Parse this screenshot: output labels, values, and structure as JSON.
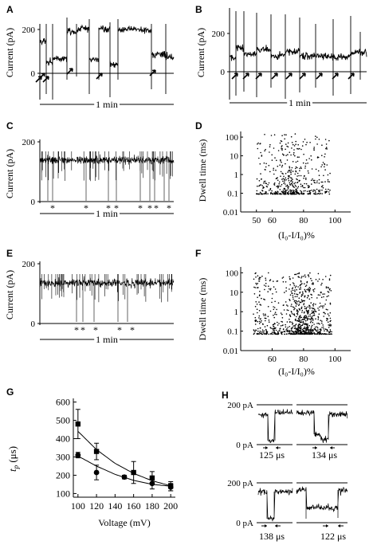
{
  "panels": {
    "A": {
      "label": "A",
      "ylabel": "Current (pA)",
      "yticks": [
        "200",
        "0"
      ],
      "scalebar": "1 min",
      "arrow_count": 6
    },
    "B": {
      "label": "B",
      "ylabel": "Current (pA)",
      "yticks": [
        "200",
        "0"
      ],
      "scalebar": "1 min",
      "arrow_count": 9
    },
    "C": {
      "label": "C",
      "ylabel": "Current (pA)",
      "yticks": [
        "200",
        "0"
      ],
      "scalebar": "1 min",
      "star_marks": [
        "*",
        "*",
        "*",
        "*",
        "*",
        "*",
        "*",
        "*"
      ]
    },
    "E": {
      "label": "E",
      "ylabel": "Current (pA)",
      "yticks": [
        "200",
        "0"
      ],
      "scalebar": "1 min",
      "star_marks": [
        "*",
        "*",
        "*",
        "*",
        "*"
      ]
    },
    "H": {
      "label": "H",
      "level_200": "200 pA",
      "level_0": "0 pA",
      "durations": [
        "125 μs",
        "134 μs",
        "138 μs",
        "122 μs"
      ]
    }
  },
  "chart_data": [
    {
      "panel": "D",
      "type": "scatter",
      "title": "",
      "xlabel": "(I₀-I/I₀)%",
      "ylabel": "Dwell time (ms)",
      "xlim": [
        40,
        110
      ],
      "ylim": [
        0.01,
        200
      ],
      "yscale": "log",
      "xticks": [
        "50",
        "60",
        "80",
        "100"
      ],
      "yticks": [
        "100",
        "10",
        "1",
        "0.1",
        "0.01"
      ],
      "points_note_x_range": [
        50,
        97
      ],
      "points_note_y_range": [
        0.09,
        150
      ]
    },
    {
      "panel": "F",
      "type": "scatter",
      "title": "",
      "xlabel": "(I₀-I/I₀)%",
      "ylabel": "Dwell time (ms)",
      "xlim": [
        40,
        110
      ],
      "ylim": [
        0.01,
        200
      ],
      "yscale": "log",
      "xticks": [
        "60",
        "80",
        "100"
      ],
      "yticks": [
        "100",
        "10",
        "1",
        "0.1",
        "0.01"
      ],
      "points_note_x_range": [
        48,
        98
      ],
      "points_note_y_range": [
        0.07,
        100
      ]
    },
    {
      "panel": "G",
      "type": "line",
      "title": "",
      "xlabel": "Voltage (mV)",
      "ylabel_main": "t",
      "ylabel_sub": "p",
      "ylabel_unit": " (μs)",
      "xlim": [
        95,
        205
      ],
      "ylim": [
        80,
        620
      ],
      "xticks": [
        100,
        120,
        140,
        160,
        180,
        200
      ],
      "yticks": [
        100,
        200,
        300,
        400,
        500,
        600
      ],
      "series": [
        {
          "marker": "square",
          "x": [
            100,
            120,
            160,
            180,
            200
          ],
          "y": [
            480,
            330,
            215,
            185,
            140
          ],
          "err": [
            80,
            45,
            60,
            35,
            25
          ],
          "fit": [
            [
              100,
              440
            ],
            [
              120,
              340
            ],
            [
              140,
              265
            ],
            [
              160,
              210
            ],
            [
              180,
              170
            ],
            [
              200,
              142
            ]
          ]
        },
        {
          "marker": "circle",
          "x": [
            100,
            120,
            150,
            180,
            200
          ],
          "y": [
            310,
            215,
            190,
            155,
            135
          ],
          "err": [
            15,
            40,
            10,
            30,
            20
          ],
          "fit": [
            [
              100,
              305
            ],
            [
              120,
              250
            ],
            [
              140,
              205
            ],
            [
              160,
              172
            ],
            [
              180,
              150
            ],
            [
              200,
              140
            ]
          ]
        }
      ]
    }
  ]
}
